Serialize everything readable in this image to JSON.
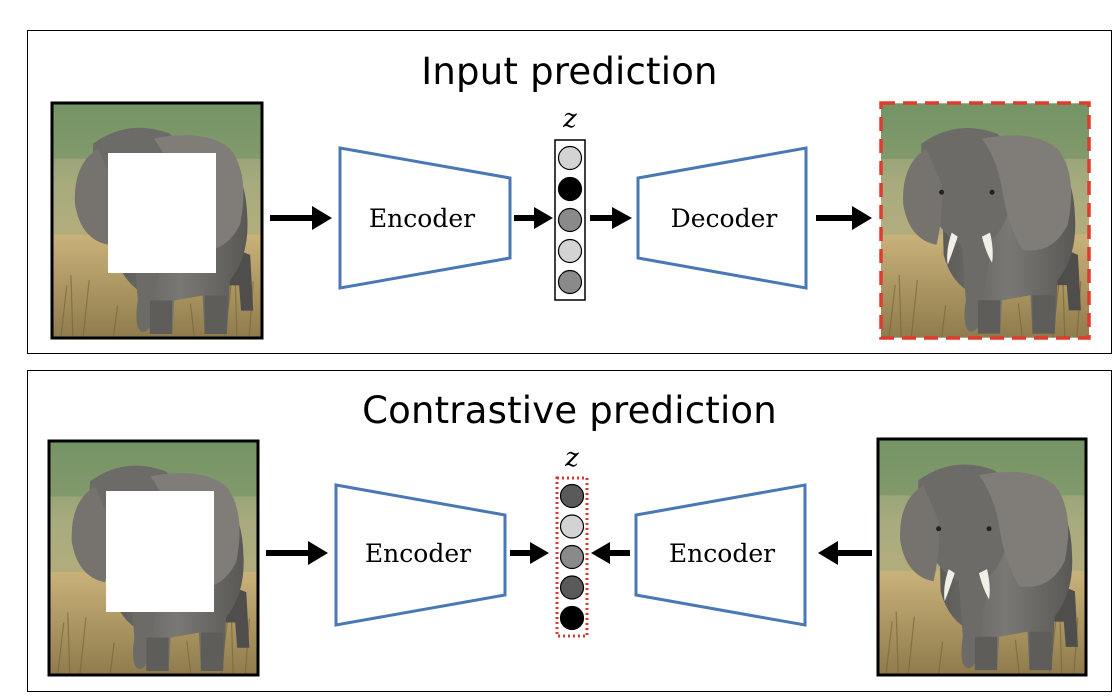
{
  "input_prediction": {
    "title": "Input prediction",
    "encoder_label": "Encoder",
    "decoder_label": "Decoder",
    "latent_label": "z",
    "latent_circles": [
      "#d3d3d3",
      "#000000",
      "#8a8a8a",
      "#d3d3d3",
      "#8a8a8a"
    ]
  },
  "contrastive_prediction": {
    "title": "Contrastive prediction",
    "encoder_left_label": "Encoder",
    "encoder_right_label": "Encoder",
    "latent_label": "z",
    "latent_circles": [
      "#5a5a5a",
      "#d3d3d3",
      "#8a8a8a",
      "#5a5a5a",
      "#000000"
    ]
  },
  "colors": {
    "box_stroke": "#4a78b5",
    "target_dash": "#e03b2f",
    "latent_dotted": "#d63a2f",
    "panel_border": "#000000",
    "arrow": "#000000"
  }
}
